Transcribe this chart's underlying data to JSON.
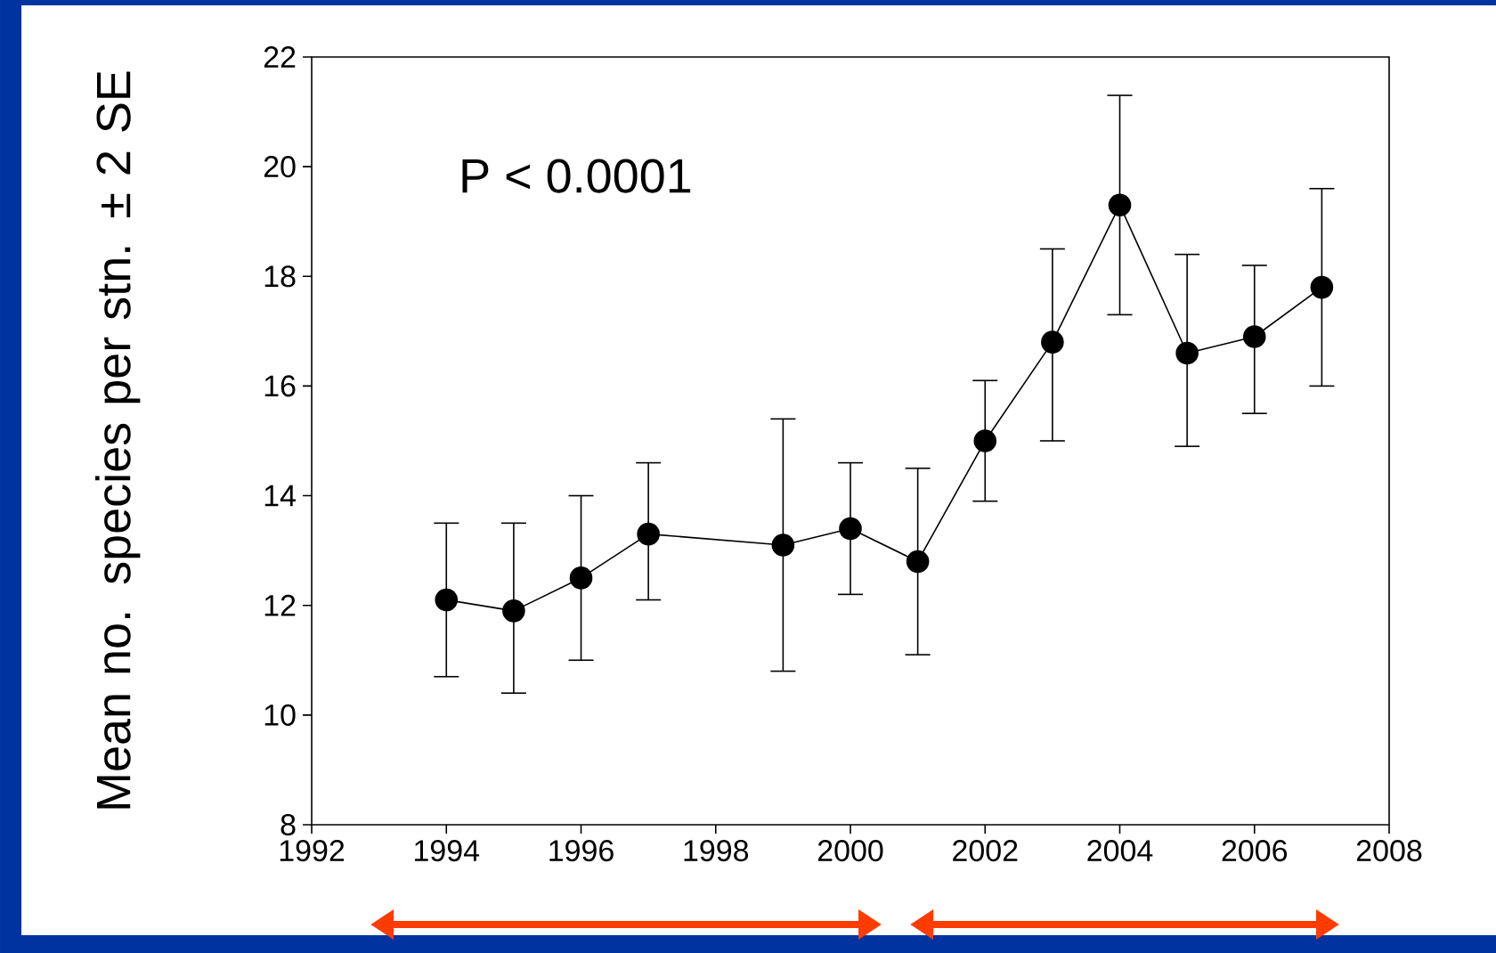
{
  "chart_data": {
    "type": "line",
    "ylabel": "Mean no. species per stn. ± 2 SE",
    "annotations": [
      "P < 0.0001"
    ],
    "x": [
      1994,
      1995,
      1996,
      1997,
      1999,
      2000,
      2001,
      2002,
      2003,
      2004,
      2005,
      2006,
      2007
    ],
    "series": [
      {
        "color": "#000000",
        "values": [
          12.1,
          11.9,
          12.5,
          13.3,
          13.1,
          13.4,
          12.8,
          15.0,
          16.8,
          19.3,
          16.6,
          16.9,
          17.8
        ],
        "errors": [
          [
            10.7,
            13.5
          ],
          [
            10.4,
            13.5
          ],
          [
            11.0,
            14.0
          ],
          [
            12.1,
            14.6
          ],
          [
            10.8,
            15.4
          ],
          [
            12.2,
            14.6
          ],
          [
            11.1,
            14.5
          ],
          [
            13.9,
            16.1
          ],
          [
            15.0,
            18.5
          ],
          [
            17.3,
            21.3
          ],
          [
            14.9,
            18.4
          ],
          [
            15.5,
            18.2
          ],
          [
            16.0,
            19.6
          ]
        ]
      }
    ],
    "xlim": [
      1992,
      2008
    ],
    "xticks": [
      1992,
      1994,
      1996,
      1998,
      2000,
      2002,
      2004,
      2006,
      2008
    ],
    "ylim": [
      8,
      22
    ],
    "yticks": [
      8,
      10,
      12,
      14,
      16,
      18,
      20,
      22
    ],
    "marker": "circle",
    "line_style": "solid"
  }
}
